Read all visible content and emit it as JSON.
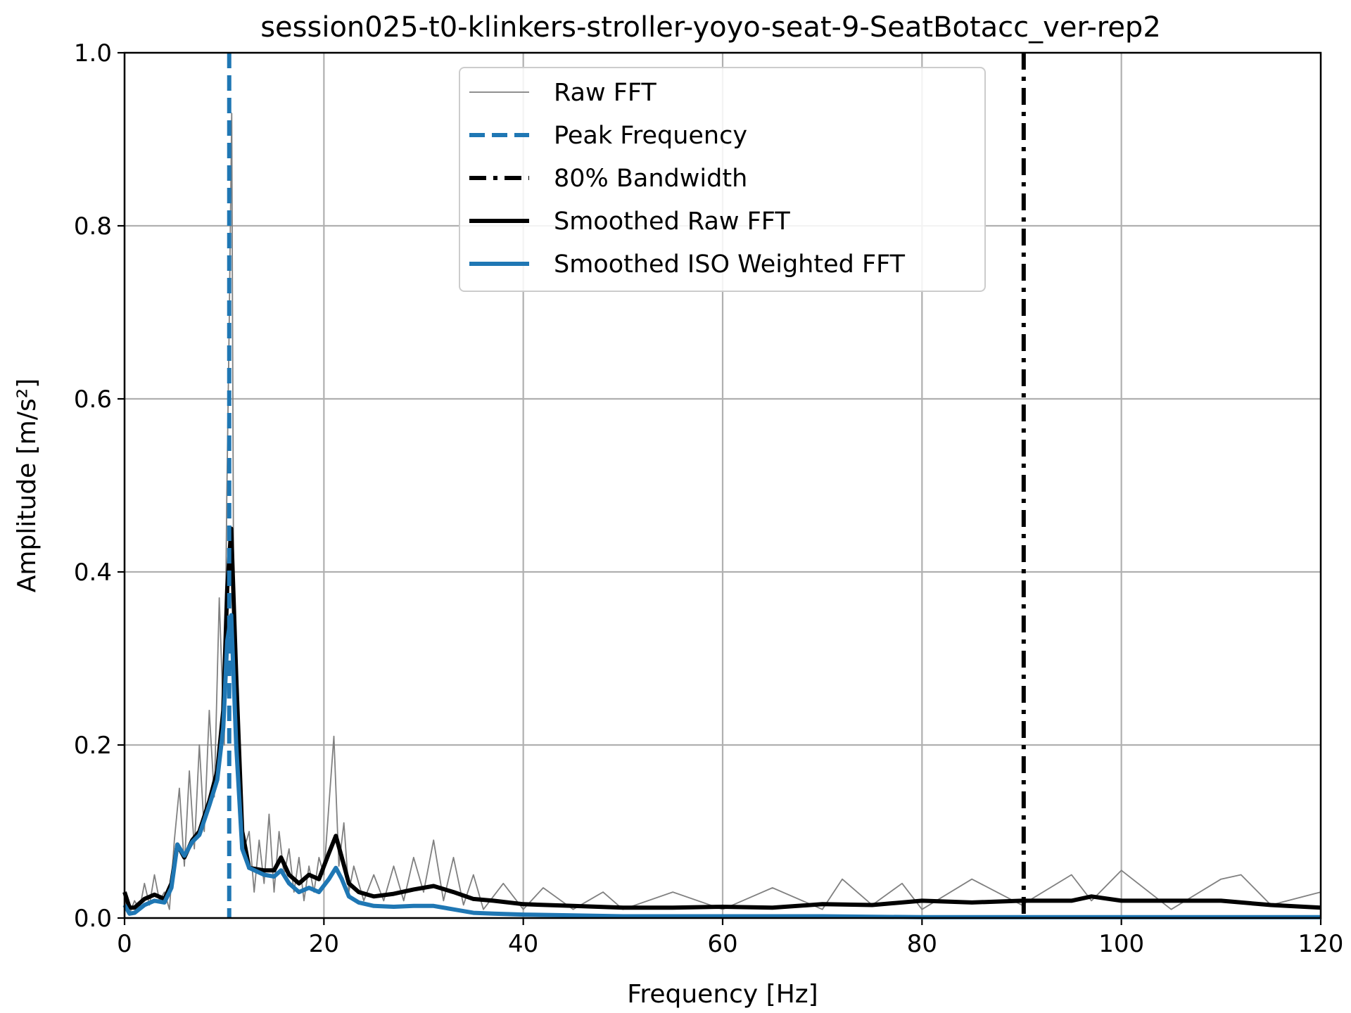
{
  "chart_data": {
    "type": "line",
    "title": "session025-t0-klinkers-stroller-yoyo-seat-9-SeatBotacc_ver-rep2",
    "xlabel": "Frequency [Hz]",
    "ylabel": "Amplitude [m/s²]",
    "xlim": [
      0,
      120
    ],
    "ylim": [
      0,
      1.0
    ],
    "xticks": [
      "0",
      "20",
      "40",
      "60",
      "80",
      "100",
      "120"
    ],
    "yticks": [
      "0.0",
      "0.2",
      "0.4",
      "0.6",
      "0.8",
      "1.0"
    ],
    "grid": true,
    "legend_position": "top-center",
    "legend": [
      {
        "label": "Raw FFT",
        "color": "#808080",
        "style": "solid-thin"
      },
      {
        "label": "Peak Frequency",
        "color": "#1f77b4",
        "style": "dashed"
      },
      {
        "label": "80% Bandwidth",
        "color": "#000000",
        "style": "dashdot"
      },
      {
        "label": "Smoothed Raw FFT",
        "color": "#000000",
        "style": "solid-thick"
      },
      {
        "label": "Smoothed ISO Weighted FFT",
        "color": "#1f77b4",
        "style": "solid-thick"
      }
    ],
    "peak_frequency": 10.5,
    "bandwidth_80": 90.2,
    "series": [
      {
        "name": "Smoothed Raw FFT",
        "color": "#000000",
        "x": [
          0,
          0.5,
          1,
          2,
          3,
          4,
          4.7,
          5.3,
          6,
          6.8,
          7.5,
          8.5,
          9.3,
          9.9,
          10.3,
          10.7,
          11.2,
          11.8,
          12.5,
          14,
          15,
          15.7,
          16.5,
          17.5,
          18.5,
          19.5,
          20.5,
          21.2,
          21.8,
          22.5,
          23.5,
          25,
          27,
          29,
          31,
          33,
          35,
          37,
          40,
          45,
          50,
          55,
          60,
          65,
          70,
          75,
          80,
          85,
          90,
          95,
          97,
          100,
          105,
          110,
          115,
          120
        ],
        "values": [
          0.03,
          0.012,
          0.012,
          0.022,
          0.027,
          0.022,
          0.04,
          0.085,
          0.07,
          0.09,
          0.1,
          0.135,
          0.17,
          0.24,
          0.38,
          0.45,
          0.28,
          0.1,
          0.058,
          0.055,
          0.055,
          0.07,
          0.05,
          0.04,
          0.05,
          0.045,
          0.075,
          0.095,
          0.07,
          0.04,
          0.03,
          0.025,
          0.028,
          0.033,
          0.037,
          0.03,
          0.022,
          0.02,
          0.016,
          0.014,
          0.012,
          0.012,
          0.013,
          0.012,
          0.016,
          0.015,
          0.02,
          0.018,
          0.02,
          0.02,
          0.025,
          0.02,
          0.02,
          0.02,
          0.015,
          0.012
        ]
      },
      {
        "name": "Smoothed ISO Weighted FFT",
        "color": "#1f77b4",
        "x": [
          0,
          0.5,
          1,
          2,
          3,
          4,
          4.7,
          5.3,
          6,
          6.8,
          7.5,
          8.5,
          9.3,
          9.9,
          10.3,
          10.7,
          11.2,
          11.8,
          12.5,
          14,
          15,
          15.7,
          16.5,
          17.5,
          18.5,
          19.5,
          20.5,
          21.2,
          21.8,
          22.5,
          23.5,
          25,
          27,
          29,
          31,
          33,
          35,
          37,
          40,
          45,
          50,
          60,
          70,
          80,
          90,
          100,
          110,
          120
        ],
        "values": [
          0.015,
          0.005,
          0.006,
          0.015,
          0.02,
          0.018,
          0.035,
          0.085,
          0.072,
          0.088,
          0.096,
          0.13,
          0.16,
          0.22,
          0.32,
          0.35,
          0.2,
          0.08,
          0.058,
          0.05,
          0.048,
          0.055,
          0.04,
          0.03,
          0.035,
          0.03,
          0.045,
          0.058,
          0.045,
          0.025,
          0.018,
          0.014,
          0.013,
          0.014,
          0.014,
          0.01,
          0.006,
          0.005,
          0.004,
          0.003,
          0.002,
          0.002,
          0.002,
          0.001,
          0.001,
          0.001,
          0.001,
          0.001
        ]
      },
      {
        "name": "Raw FFT",
        "color": "#808080",
        "x": [
          0,
          0.5,
          1,
          1.5,
          2,
          2.5,
          3,
          3.5,
          4,
          4.5,
          5,
          5.5,
          6,
          6.5,
          7,
          7.5,
          8,
          8.5,
          9,
          9.5,
          10,
          10.25,
          10.5,
          10.75,
          11,
          11.5,
          12,
          12.5,
          13,
          13.5,
          14,
          14.5,
          15,
          15.5,
          16,
          16.5,
          17,
          17.5,
          18,
          18.5,
          19,
          19.5,
          20,
          20.5,
          21,
          21.5,
          22,
          22.5,
          23,
          24,
          25,
          26,
          27,
          28,
          29,
          30,
          31,
          32,
          33,
          34,
          35,
          36,
          38,
          40,
          42,
          45,
          48,
          50,
          55,
          60,
          65,
          70,
          72,
          75,
          78,
          80,
          85,
          90,
          95,
          97,
          100,
          105,
          110,
          112,
          115,
          120
        ],
        "values": [
          0.02,
          0.005,
          0.02,
          0.01,
          0.04,
          0.015,
          0.05,
          0.02,
          0.03,
          0.01,
          0.09,
          0.15,
          0.06,
          0.17,
          0.08,
          0.2,
          0.1,
          0.24,
          0.14,
          0.37,
          0.2,
          0.48,
          0.69,
          0.93,
          0.22,
          0.2,
          0.08,
          0.1,
          0.03,
          0.09,
          0.04,
          0.12,
          0.03,
          0.1,
          0.05,
          0.08,
          0.03,
          0.07,
          0.02,
          0.06,
          0.03,
          0.07,
          0.05,
          0.13,
          0.21,
          0.06,
          0.11,
          0.03,
          0.06,
          0.02,
          0.05,
          0.02,
          0.06,
          0.02,
          0.07,
          0.03,
          0.09,
          0.02,
          0.07,
          0.015,
          0.05,
          0.01,
          0.04,
          0.01,
          0.035,
          0.01,
          0.03,
          0.01,
          0.03,
          0.01,
          0.035,
          0.01,
          0.045,
          0.015,
          0.04,
          0.01,
          0.045,
          0.015,
          0.05,
          0.02,
          0.055,
          0.01,
          0.045,
          0.05,
          0.015,
          0.03
        ]
      }
    ]
  }
}
